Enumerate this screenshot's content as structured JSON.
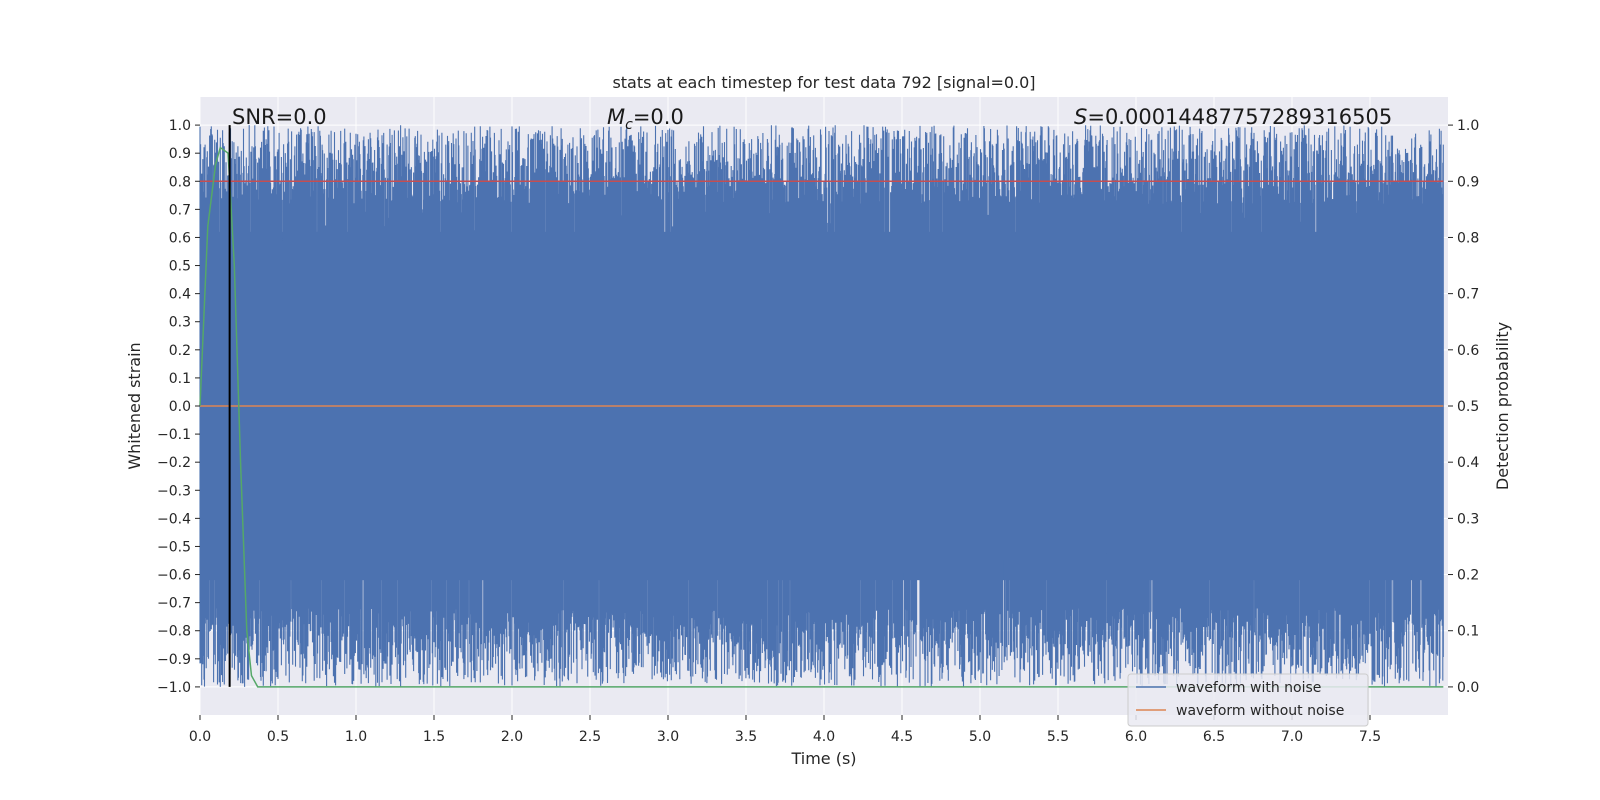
{
  "chart_data": {
    "type": "line",
    "title": "stats at each timestep for test data 792 [signal=0.0]",
    "xlabel": "Time (s)",
    "ylabel": "Whitened strain",
    "y2label": "Detection probability",
    "xlim": [
      0.0,
      8.0
    ],
    "ylim": [
      -1.1,
      1.1
    ],
    "y2lim": [
      -0.05,
      1.05
    ],
    "x_ticks": [
      "0.0",
      "0.5",
      "1.0",
      "1.5",
      "2.0",
      "2.5",
      "3.0",
      "3.5",
      "4.0",
      "4.5",
      "5.0",
      "5.5",
      "6.0",
      "6.5",
      "7.0",
      "7.5"
    ],
    "y_ticks": [
      "1.0",
      "0.9",
      "0.8",
      "0.7",
      "0.6",
      "0.5",
      "0.4",
      "0.3",
      "0.2",
      "0.1",
      "0.0",
      "−0.1",
      "−0.2",
      "−0.3",
      "−0.4",
      "−0.5",
      "−0.6",
      "−0.7",
      "−0.8",
      "−0.9",
      "−1.0"
    ],
    "y2_ticks": [
      "1.0",
      "0.9",
      "0.8",
      "0.7",
      "0.6",
      "0.5",
      "0.4",
      "0.3",
      "0.2",
      "0.1",
      "0.0"
    ],
    "grid": true,
    "legend_position": "lower-right",
    "annotations": {
      "snr": "SNR=0.0",
      "mc_symbol": "M",
      "mc_sub": "c",
      "mc_value": "=0.0",
      "s_symbol": "S",
      "s_value": "=0.00014487757289316505"
    },
    "series": [
      {
        "name": "waveform with noise",
        "color": "#4c72b0",
        "note_range": "dense noise spanning roughly -1.0 to 1.0 across 0–8 s"
      },
      {
        "name": "waveform without noise",
        "color": "#dd8452",
        "y": [
          0.0
        ]
      },
      {
        "color": "#55a868",
        "axis": "right",
        "x": [
          0.0,
          0.05,
          0.1,
          0.13,
          0.18,
          0.22,
          0.26,
          0.3,
          0.33,
          0.37,
          0.4,
          7.97
        ],
        "y": [
          0.5,
          0.82,
          0.93,
          0.96,
          0.95,
          0.75,
          0.4,
          0.1,
          0.02,
          0.0,
          0.0,
          0.0
        ]
      },
      {
        "color": "#c44e52",
        "axis": "right",
        "x": [
          0.0,
          7.97
        ],
        "y": [
          0.9,
          0.9
        ]
      }
    ],
    "vline": {
      "x": 0.19,
      "color": "#000000"
    }
  }
}
